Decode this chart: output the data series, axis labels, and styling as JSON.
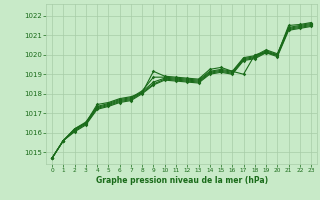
{
  "background_color": "#c8eac8",
  "grid_color": "#a8cca8",
  "line_color": "#1a6b1a",
  "text_color": "#1a6b1a",
  "xlabel": "Graphe pression niveau de la mer (hPa)",
  "xlim": [
    -0.5,
    23.5
  ],
  "ylim": [
    1014.4,
    1022.6
  ],
  "yticks": [
    1015,
    1016,
    1017,
    1018,
    1019,
    1020,
    1021,
    1022
  ],
  "xticks": [
    0,
    1,
    2,
    3,
    4,
    5,
    6,
    7,
    8,
    9,
    10,
    11,
    12,
    13,
    14,
    15,
    16,
    17,
    18,
    19,
    20,
    21,
    22,
    23
  ],
  "series": [
    [
      1014.7,
      1015.6,
      1016.2,
      1016.5,
      1017.45,
      1017.55,
      1017.75,
      1017.85,
      1018.05,
      1019.15,
      1018.9,
      1018.85,
      1018.8,
      1018.75,
      1019.25,
      1019.35,
      1019.15,
      1019.0,
      1020.0,
      1020.1,
      1020.0,
      1021.5,
      1021.55,
      1021.65
    ],
    [
      1014.7,
      1015.6,
      1016.2,
      1016.55,
      1017.35,
      1017.5,
      1017.7,
      1017.8,
      1018.15,
      1018.85,
      1018.85,
      1018.8,
      1018.75,
      1018.7,
      1019.15,
      1019.25,
      1019.15,
      1019.85,
      1019.95,
      1020.25,
      1020.05,
      1021.4,
      1021.5,
      1021.6
    ],
    [
      1014.7,
      1015.6,
      1016.15,
      1016.5,
      1017.3,
      1017.45,
      1017.65,
      1017.75,
      1018.1,
      1018.6,
      1018.8,
      1018.75,
      1018.7,
      1018.65,
      1019.1,
      1019.2,
      1019.1,
      1019.8,
      1019.9,
      1020.2,
      1020.0,
      1021.35,
      1021.45,
      1021.55
    ],
    [
      1014.7,
      1015.6,
      1016.1,
      1016.45,
      1017.25,
      1017.4,
      1017.6,
      1017.7,
      1018.05,
      1018.5,
      1018.75,
      1018.7,
      1018.65,
      1018.6,
      1019.05,
      1019.15,
      1019.05,
      1019.75,
      1019.85,
      1020.15,
      1019.95,
      1021.3,
      1021.4,
      1021.5
    ],
    [
      1014.7,
      1015.6,
      1016.05,
      1016.4,
      1017.2,
      1017.35,
      1017.55,
      1017.65,
      1018.0,
      1018.45,
      1018.7,
      1018.65,
      1018.6,
      1018.55,
      1019.0,
      1019.1,
      1019.0,
      1019.7,
      1019.8,
      1020.1,
      1019.9,
      1021.25,
      1021.35,
      1021.45
    ]
  ]
}
